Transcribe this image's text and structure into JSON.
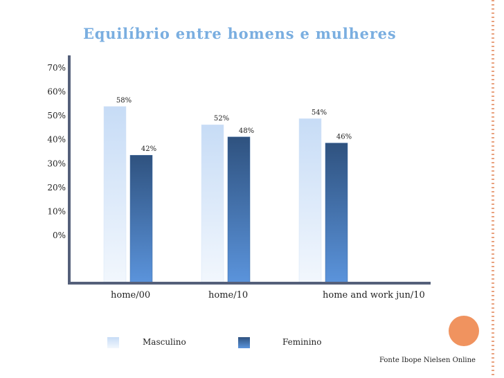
{
  "chart_data": {
    "type": "bar",
    "title": "Equilíbrio entre homens e mulheres",
    "categories": [
      "home/00",
      "home/10",
      "home and work jun/10"
    ],
    "series": [
      {
        "name": "Masculino",
        "values": [
          58,
          52,
          54
        ],
        "labels": [
          "58%",
          "52%",
          "54%"
        ]
      },
      {
        "name": "Feminino",
        "values": [
          42,
          48,
          46
        ],
        "labels": [
          "42%",
          "48%",
          "46%"
        ]
      }
    ],
    "y_ticks": [
      "0%",
      "10%",
      "20%",
      "30%",
      "40%",
      "50%",
      "60%",
      "70%"
    ],
    "ylim": [
      0,
      70
    ],
    "grid": false,
    "legend_position": "bottom"
  },
  "colors": {
    "masculino_top": "#c7dcf6",
    "masculino_bottom": "#f2f7fd",
    "feminino_top": "#2f527f",
    "feminino_bottom": "#5b94dc",
    "axis": "#55607a",
    "accent": "#f0935f"
  },
  "footer": {
    "source": "Fonte Ibope Nielsen Online"
  }
}
